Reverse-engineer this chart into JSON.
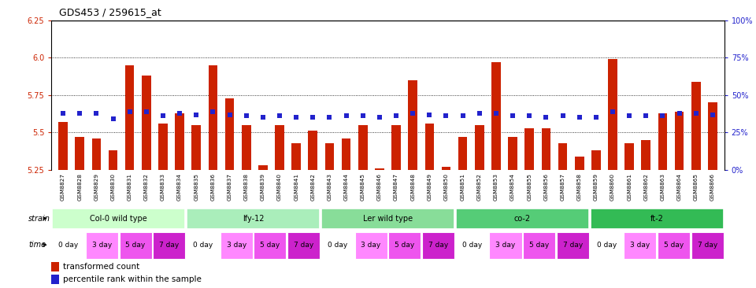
{
  "title": "GDS453 / 259615_at",
  "samples": [
    "GSM8827",
    "GSM8828",
    "GSM8829",
    "GSM8830",
    "GSM8831",
    "GSM8832",
    "GSM8833",
    "GSM8834",
    "GSM8835",
    "GSM8836",
    "GSM8837",
    "GSM8838",
    "GSM8839",
    "GSM8840",
    "GSM8841",
    "GSM8842",
    "GSM8843",
    "GSM8844",
    "GSM8845",
    "GSM8846",
    "GSM8847",
    "GSM8848",
    "GSM8849",
    "GSM8850",
    "GSM8851",
    "GSM8852",
    "GSM8853",
    "GSM8854",
    "GSM8855",
    "GSM8856",
    "GSM8857",
    "GSM8858",
    "GSM8859",
    "GSM8860",
    "GSM8861",
    "GSM8862",
    "GSM8863",
    "GSM8864",
    "GSM8865",
    "GSM8866"
  ],
  "bar_values": [
    5.57,
    5.47,
    5.46,
    5.38,
    5.95,
    5.88,
    5.56,
    5.63,
    5.55,
    5.95,
    5.73,
    5.55,
    5.28,
    5.55,
    5.43,
    5.51,
    5.43,
    5.46,
    5.55,
    5.26,
    5.55,
    5.85,
    5.56,
    5.27,
    5.47,
    5.55,
    5.97,
    5.47,
    5.53,
    5.53,
    5.43,
    5.34,
    5.38,
    5.99,
    5.43,
    5.45,
    5.63,
    5.64,
    5.84,
    5.7
  ],
  "dot_values": [
    5.63,
    5.63,
    5.63,
    5.59,
    5.64,
    5.64,
    5.61,
    5.63,
    5.62,
    5.64,
    5.62,
    5.61,
    5.6,
    5.61,
    5.6,
    5.6,
    5.6,
    5.61,
    5.61,
    5.6,
    5.61,
    5.63,
    5.62,
    5.61,
    5.61,
    5.63,
    5.63,
    5.61,
    5.61,
    5.6,
    5.61,
    5.6,
    5.6,
    5.64,
    5.61,
    5.61,
    5.61,
    5.63,
    5.63,
    5.62
  ],
  "ylim": [
    5.25,
    6.25
  ],
  "yticks_left": [
    5.25,
    5.5,
    5.75,
    6.0,
    6.25
  ],
  "yticks_right_vals": [
    5.25,
    5.5,
    5.75,
    6.0,
    6.25
  ],
  "yticks_right_labels": [
    "0%",
    "25%",
    "50%",
    "75%",
    "100%"
  ],
  "grid_lines": [
    5.5,
    5.75,
    6.0
  ],
  "bar_color": "#cc2200",
  "dot_color": "#2222cc",
  "strains": [
    {
      "label": "Col-0 wild type",
      "start": 0,
      "end": 8,
      "color": "#ccffcc"
    },
    {
      "label": "lfy-12",
      "start": 8,
      "end": 16,
      "color": "#aaeebb"
    },
    {
      "label": "Ler wild type",
      "start": 16,
      "end": 24,
      "color": "#88dd99"
    },
    {
      "label": "co-2",
      "start": 24,
      "end": 32,
      "color": "#55cc77"
    },
    {
      "label": "ft-2",
      "start": 32,
      "end": 40,
      "color": "#33bb55"
    }
  ],
  "times": [
    "0 day",
    "3 day",
    "5 day",
    "7 day"
  ],
  "time_colors": [
    "#ffffff",
    "#ff88ff",
    "#ee55ee",
    "#cc22cc"
  ],
  "legend_bar_color": "#cc2200",
  "legend_dot_color": "#2222cc",
  "axis_label_color_left": "#cc2200",
  "axis_label_color_right": "#2222cc"
}
